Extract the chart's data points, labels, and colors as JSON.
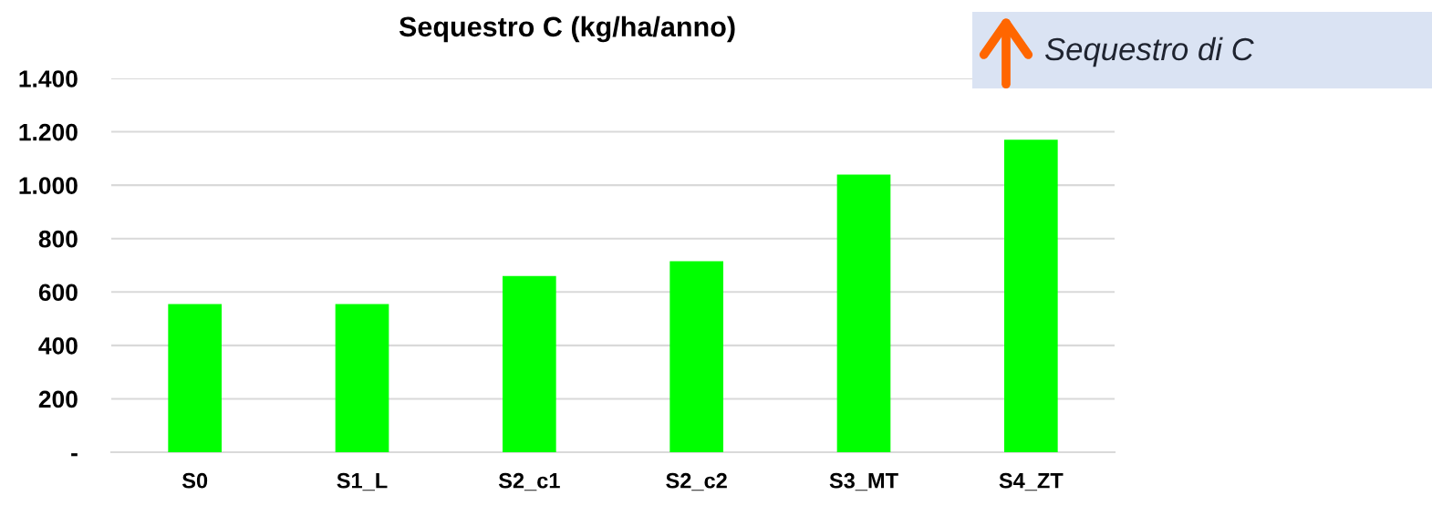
{
  "chart_data": {
    "type": "bar",
    "title": "Sequestro C (kg/ha/anno)",
    "categories": [
      "S0",
      "S1_L",
      "S2_c1",
      "S2_c2",
      "S3_MT",
      "S4_ZT"
    ],
    "values": [
      555,
      555,
      660,
      715,
      1040,
      1170
    ],
    "color": "#00ff00",
    "ylim": [
      0,
      1400
    ],
    "yticks": [
      {
        "value": 0,
        "label": "-"
      },
      200,
      400,
      600,
      800,
      {
        "value": 1000,
        "label": "1.000"
      },
      {
        "value": 1200,
        "label": "1.200"
      },
      {
        "value": 1400,
        "label": "1.400"
      }
    ],
    "grid": "y",
    "annotations": [
      "Sequestro di C"
    ]
  }
}
